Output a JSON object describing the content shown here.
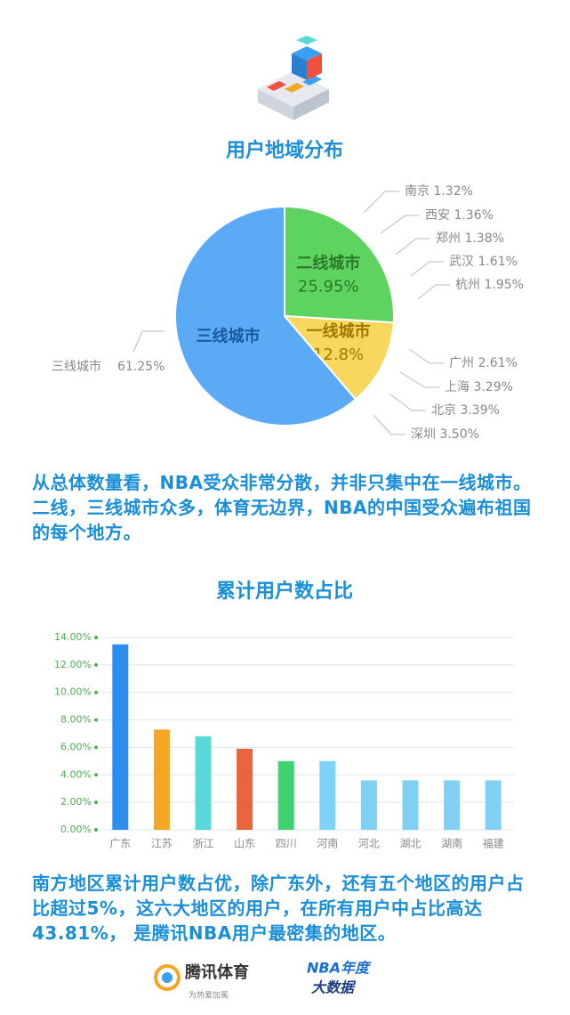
{
  "chart_data": [
    {
      "type": "pie",
      "title": "用户地域分布",
      "categories": [
        "二线城市",
        "一线城市",
        "三线城市"
      ],
      "values": [
        25.95,
        12.8,
        61.25
      ],
      "value_labels": [
        "25.95%",
        "12.8%",
        "61.25%"
      ],
      "colors": [
        "#5fd35f",
        "#f7d75e",
        "#5aaaf5"
      ],
      "annotations": [
        "南京  1.32%",
        "西安  1.36%",
        "郑州  1.38%",
        "武汉  1.61%",
        "杭州  1.95%",
        "广州  2.61%",
        "上海  3.29%",
        "北京  3.39%",
        "深圳  3.50%"
      ],
      "caption": "从总体数量看，NBA受众非常分散，并非只集中在一线城市。二线，三线城市众多，体育无边界，NBA的中国受众遍布祖国的每个地方。"
    },
    {
      "type": "bar",
      "title": "累计用户数占比",
      "categories": [
        "广东",
        "江苏",
        "浙江",
        "山东",
        "四川",
        "河南",
        "河北",
        "湖北",
        "湖南",
        "福建"
      ],
      "values": [
        13.5,
        7.3,
        6.8,
        5.9,
        5.0,
        5.0,
        3.6,
        3.6,
        3.6,
        3.6
      ],
      "colors": [
        "#2e8ef0",
        "#f5a623",
        "#5ad8d8",
        "#e8643c",
        "#3ed26e",
        "#7dd3f5",
        "#7fd0f2",
        "#7fd0f2",
        "#7fd0f2",
        "#7fd0f2"
      ],
      "ylim": [
        0,
        14
      ],
      "yticks": [
        {
          "value": 0,
          "label": "0.00%"
        },
        {
          "value": 2,
          "label": "2.00%"
        },
        {
          "value": 4,
          "label": "4.00%"
        },
        {
          "value": 6,
          "label": "6.00%"
        },
        {
          "value": 8,
          "label": "8.00%"
        },
        {
          "value": 10,
          "label": "10.00%"
        },
        {
          "value": 12,
          "label": "12.00%"
        },
        {
          "value": 14,
          "label": "14.00%"
        }
      ],
      "grid": true,
      "caption": "南方地区累计用户数占优，除广东外，还有五个地区的用户占比超过5%，这六大地区的用户，在所有用户中占比高达43.81%， 是腾讯NBA用户最密集的地区。"
    }
  ],
  "footer": {
    "brand": "腾讯体育",
    "slogan": "为热爱加冕",
    "badge_top": "NBA年度",
    "badge_bottom": "大数据"
  }
}
